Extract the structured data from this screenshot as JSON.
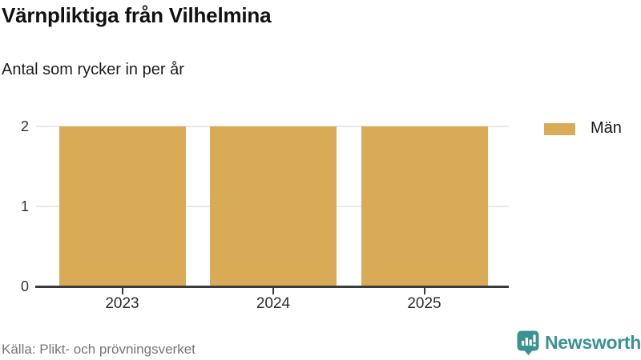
{
  "header": {
    "title": "Värnpliktiga från Vilhelmina",
    "subtitle": "Antal som rycker in per år"
  },
  "legend": {
    "items": [
      {
        "label": "Män",
        "color": "#d9ab57"
      }
    ]
  },
  "footer": {
    "source": "Källa: Plikt- och prövningsverket",
    "brand": "Newsworthy"
  },
  "colors": {
    "bar": "#d9ab57",
    "grid": "#e9e9e9",
    "axis": "#3b3b3b",
    "brand_teal": "#3a9391",
    "tick_text": "#333333",
    "muted_text": "#757575"
  },
  "chart_data": {
    "type": "bar",
    "categories": [
      "2023",
      "2024",
      "2025"
    ],
    "series": [
      {
        "name": "Män",
        "values": [
          2,
          2,
          2
        ]
      }
    ],
    "title": "Värnpliktiga från Vilhelmina",
    "subtitle": "Antal som rycker in per år",
    "xlabel": "",
    "ylabel": "",
    "ylim": [
      0,
      2
    ],
    "yticks": [
      0,
      1,
      2
    ],
    "grid": true,
    "legend_position": "top-right",
    "source": "Källa: Plikt- och prövningsverket"
  }
}
